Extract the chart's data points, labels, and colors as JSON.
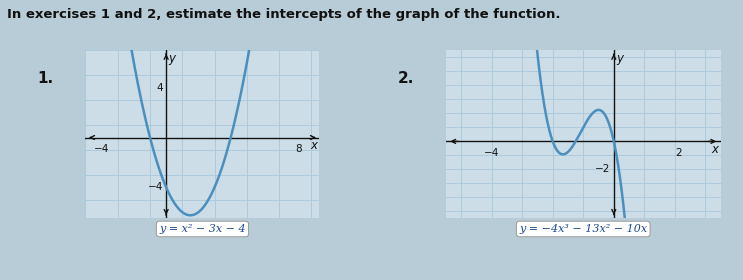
{
  "title": "In exercises 1 and 2, estimate the intercepts of the graph of the function.",
  "title_fontsize": 9.5,
  "fig_bg": "#b8ccd8",
  "panel_bg": "#ccdde8",
  "graph1": {
    "label": "1.",
    "equation": "y = x² − 3x − 4",
    "xlim": [
      -5,
      9.5
    ],
    "ylim": [
      -6.5,
      7.0
    ],
    "grid_step_x": 2,
    "grid_step_y": 2,
    "xtick_left_val": -4,
    "xtick_left_lbl": "−4",
    "xtick_right_val": 8,
    "xtick_right_lbl": "8",
    "ytick_top_val": 4,
    "ytick_top_lbl": "4",
    "ytick_bot_val": -4,
    "ytick_bot_lbl": "−4",
    "line_color": "#4a8fbe",
    "grid_color": "#a8c8dc",
    "axis_color": "#111111"
  },
  "graph2": {
    "label": "2.",
    "equation": "y = −4x³ − 13x² − 10x",
    "xlim": [
      -5.5,
      3.5
    ],
    "ylim": [
      -5.5,
      6.5
    ],
    "grid_step_x": 1,
    "grid_step_y": 1,
    "xtick_left_val": -4,
    "xtick_left_lbl": "−4",
    "xtick_right_val": 2,
    "xtick_right_lbl": "2",
    "ytick_bot_val": -2,
    "ytick_bot_lbl": "−2",
    "line_color": "#4a8fbe",
    "grid_color": "#a8c8dc",
    "axis_color": "#111111"
  },
  "label_fontsize": 11,
  "tick_fontsize": 7.5,
  "eq_fontsize": 8,
  "curve_lw": 1.8
}
